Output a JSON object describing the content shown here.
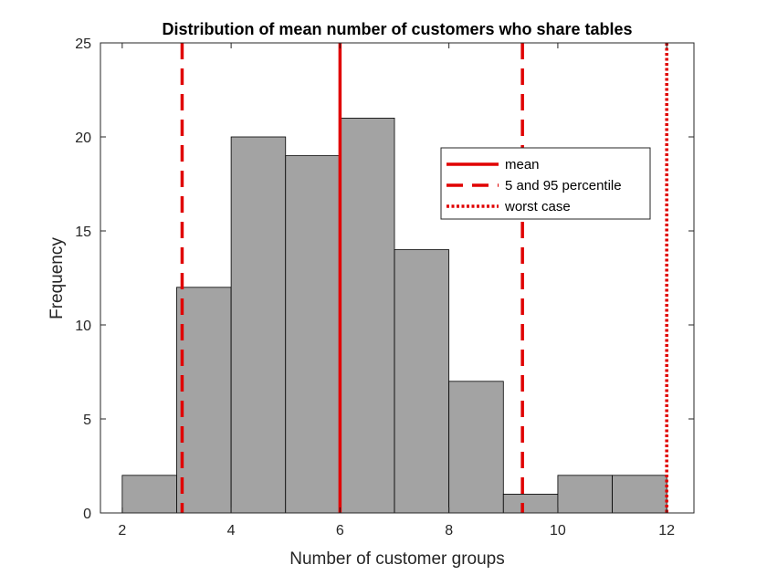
{
  "chart_data": {
    "type": "bar",
    "title": "Distribution of mean number of customers who share tables",
    "xlabel": "Number of customer groups",
    "ylabel": "Frequency",
    "xlim": [
      1.6,
      12.5
    ],
    "ylim": [
      0,
      25
    ],
    "xticks": [
      2,
      4,
      6,
      8,
      10,
      12
    ],
    "yticks": [
      0,
      5,
      10,
      15,
      20,
      25
    ],
    "bin_edges": [
      2,
      3,
      4,
      5,
      6,
      7,
      8,
      9,
      10,
      11,
      12
    ],
    "values": [
      2,
      12,
      20,
      19,
      21,
      14,
      7,
      1,
      2,
      2
    ],
    "bar_color": "#a3a3a3",
    "bar_edge_color": "#000000",
    "grid": false,
    "reference_lines": [
      {
        "name": "mean",
        "x": [
          6
        ],
        "style": "solid",
        "color": "#e00000"
      },
      {
        "name": "5 and 95 percentile",
        "x": [
          3.1,
          9.35
        ],
        "style": "dashed",
        "color": "#e00000"
      },
      {
        "name": "worst case",
        "x": [
          12.0
        ],
        "style": "dotted",
        "color": "#e00000"
      }
    ],
    "legend": {
      "placement": "upper-right-inside",
      "entries": [
        "mean",
        "5 and 95 percentile",
        "worst case"
      ]
    }
  }
}
